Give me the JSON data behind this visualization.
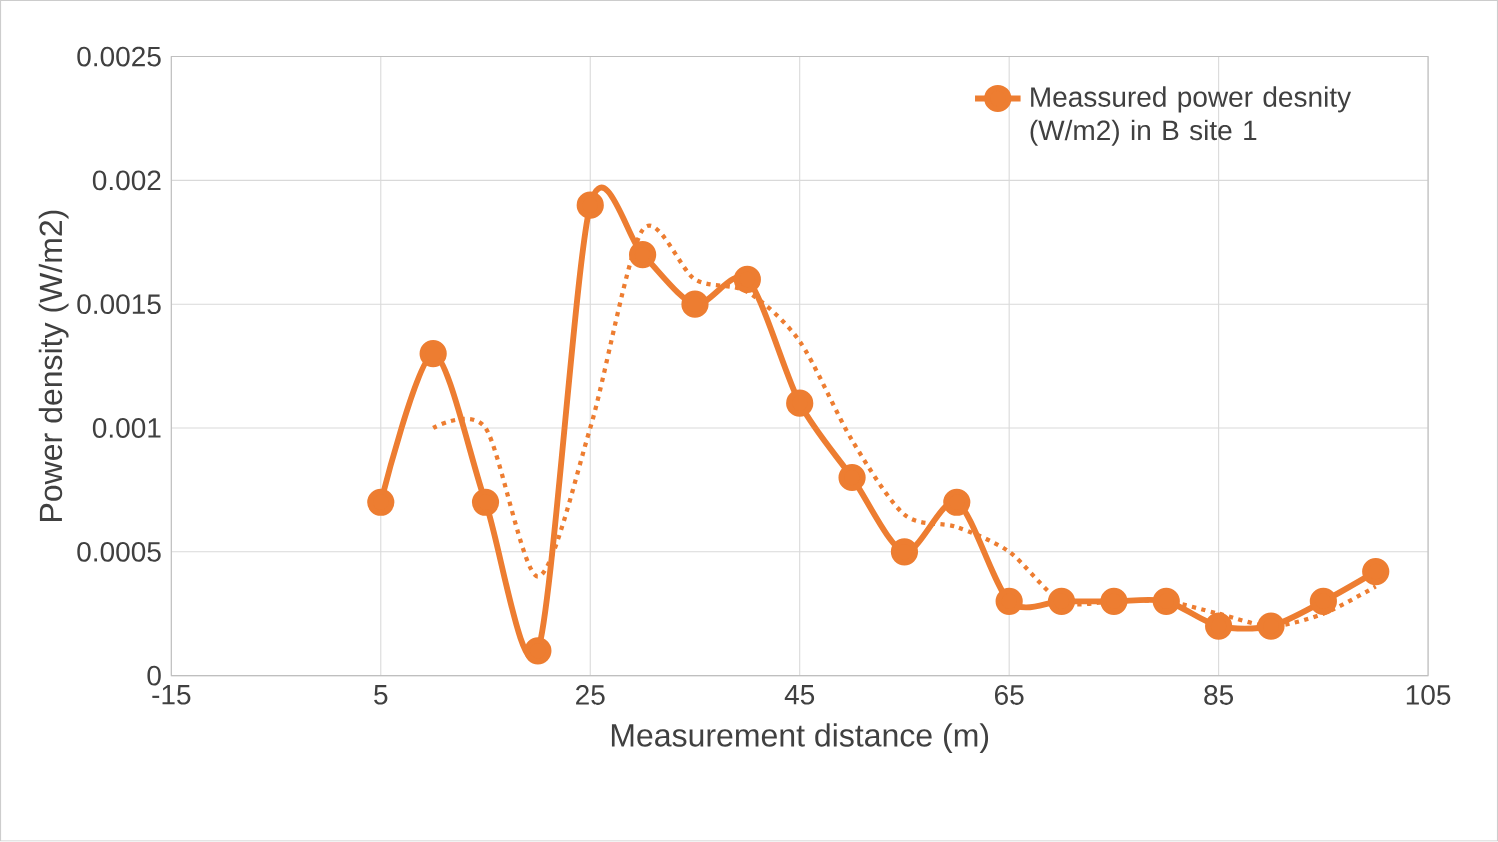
{
  "chart_data": {
    "type": "line",
    "xlabel": "Measurement distance (m)",
    "ylabel": "Power density (W/m2)",
    "xlim": [
      -15,
      105
    ],
    "xticks": [
      -15,
      5,
      25,
      45,
      65,
      85,
      105
    ],
    "ylim": [
      0,
      0.0025
    ],
    "yticks": [
      0,
      0.0005,
      0.001,
      0.0015,
      0.002,
      0.0025
    ],
    "grid": true,
    "legend": "top right",
    "series": [
      {
        "name": "Meassured power desnity (W/m2) in B site 1",
        "color": "#ed7d31",
        "marker": "circle",
        "line_style": "solid",
        "x": [
          5,
          10,
          15,
          20,
          25,
          30,
          35,
          40,
          45,
          50,
          55,
          60,
          65,
          70,
          75,
          80,
          85,
          90,
          95,
          100
        ],
        "values": [
          0.0007,
          0.0013,
          0.0007,
          0.0001,
          0.0019,
          0.0017,
          0.0015,
          0.0016,
          0.0011,
          0.0008,
          0.0005,
          0.0007,
          0.0003,
          0.0003,
          0.0003,
          0.0003,
          0.0002,
          0.0002,
          0.0003,
          0.00042
        ]
      },
      {
        "color": "#ed7d31",
        "marker": "none",
        "line_style": "dotted",
        "x": [
          10,
          15,
          20,
          25,
          30,
          35,
          40,
          45,
          50,
          55,
          60,
          65,
          70,
          75,
          80,
          85,
          90,
          95,
          100
        ],
        "values": [
          0.001,
          0.001,
          0.0004,
          0.001,
          0.0018,
          0.0016,
          0.00155,
          0.00135,
          0.00095,
          0.00065,
          0.0006,
          0.0005,
          0.0003,
          0.0003,
          0.0003,
          0.00025,
          0.0002,
          0.00025,
          0.00036
        ]
      }
    ]
  }
}
